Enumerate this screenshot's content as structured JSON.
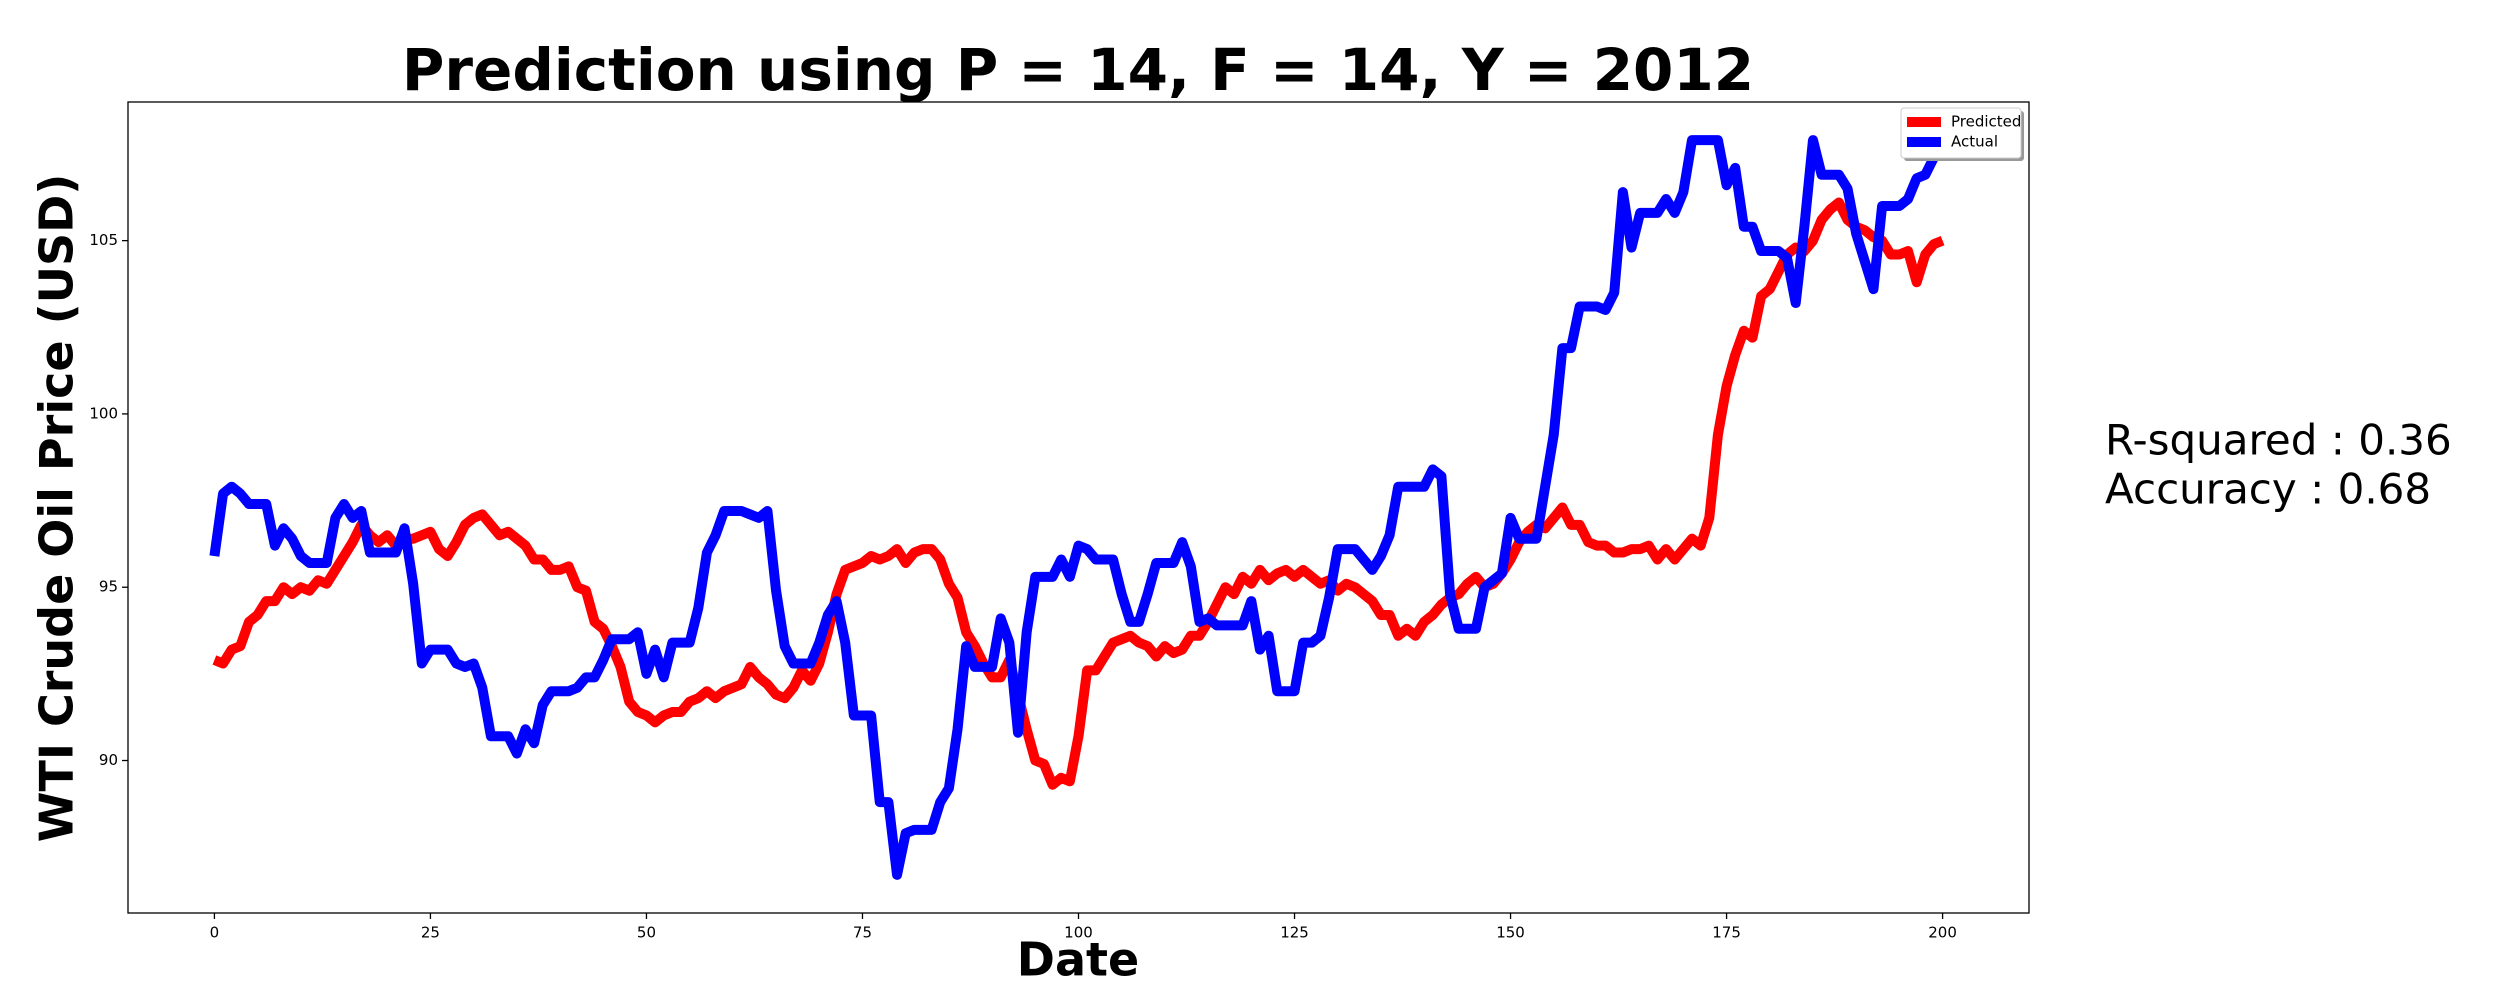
{
  "chart_data": {
    "type": "line",
    "title": "Prediction using P = 14, F = 14, Y = 2012",
    "x_label": "Date",
    "y_label": "WTI Crude Oil Price (USD)",
    "annotations": [
      "R-squared : 0.36",
      "Accuracy : 0.68"
    ],
    "legend": "upper right",
    "grid": false,
    "xlim": [
      -10,
      210
    ],
    "ylim": [
      85.6,
      109.0
    ],
    "xticks": [
      0,
      25,
      50,
      75,
      100,
      125,
      150,
      175,
      200
    ],
    "yticks": [
      90,
      95,
      100,
      105
    ],
    "x": [
      0,
      1,
      2,
      3,
      4,
      5,
      6,
      7,
      8,
      9,
      10,
      11,
      12,
      13,
      14,
      15,
      16,
      17,
      18,
      19,
      20,
      21,
      22,
      23,
      24,
      25,
      26,
      27,
      28,
      29,
      30,
      31,
      32,
      33,
      34,
      35,
      36,
      37,
      38,
      39,
      40,
      41,
      42,
      43,
      44,
      45,
      46,
      47,
      48,
      49,
      50,
      51,
      52,
      53,
      54,
      55,
      56,
      57,
      58,
      59,
      60,
      61,
      62,
      63,
      64,
      65,
      66,
      67,
      68,
      69,
      70,
      71,
      72,
      73,
      74,
      75,
      76,
      77,
      78,
      79,
      80,
      81,
      82,
      83,
      84,
      85,
      86,
      87,
      88,
      89,
      90,
      91,
      92,
      93,
      94,
      95,
      96,
      97,
      98,
      99,
      100,
      101,
      102,
      103,
      104,
      105,
      106,
      107,
      108,
      109,
      110,
      111,
      112,
      113,
      114,
      115,
      116,
      117,
      118,
      119,
      120,
      121,
      122,
      123,
      124,
      125,
      126,
      127,
      128,
      129,
      130,
      131,
      132,
      133,
      134,
      135,
      136,
      137,
      138,
      139,
      140,
      141,
      142,
      143,
      144,
      145,
      146,
      147,
      148,
      149,
      150,
      151,
      152,
      153,
      154,
      155,
      156,
      157,
      158,
      159,
      160,
      161,
      162,
      163,
      164,
      165,
      166,
      167,
      168,
      169,
      170,
      171,
      172,
      173,
      174,
      175,
      176,
      177,
      178,
      179,
      180,
      181,
      182,
      183,
      184,
      185,
      186,
      187,
      188,
      189,
      190,
      191,
      192,
      193,
      194,
      195,
      196,
      197,
      198,
      199,
      200
    ],
    "series": [
      {
        "name": "Predicted",
        "color": "#ff0000",
        "values": [
          92.9,
          92.8,
          93.2,
          93.3,
          94.0,
          94.2,
          94.6,
          94.6,
          95.0,
          94.8,
          95.0,
          94.9,
          95.2,
          95.1,
          95.5,
          95.9,
          96.3,
          96.8,
          96.5,
          96.3,
          96.5,
          96.2,
          96.4,
          96.4,
          96.5,
          96.6,
          96.1,
          95.9,
          96.3,
          96.8,
          97.0,
          97.1,
          96.8,
          96.5,
          96.6,
          96.4,
          96.2,
          95.8,
          95.8,
          95.5,
          95.5,
          95.6,
          95.0,
          94.9,
          94.0,
          93.8,
          93.3,
          92.7,
          91.7,
          91.4,
          91.3,
          91.1,
          91.3,
          91.4,
          91.4,
          91.7,
          91.8,
          92.0,
          91.8,
          92.0,
          92.1,
          92.2,
          92.7,
          92.4,
          92.2,
          91.9,
          91.8,
          92.1,
          92.6,
          92.3,
          92.8,
          93.7,
          94.8,
          95.5,
          95.6,
          95.7,
          95.9,
          95.8,
          95.9,
          96.1,
          95.7,
          96.0,
          96.1,
          96.1,
          95.8,
          95.1,
          94.7,
          93.7,
          93.3,
          92.8,
          92.4,
          92.4,
          92.9,
          91.9,
          90.9,
          90.0,
          89.9,
          89.3,
          89.5,
          89.4,
          90.7,
          92.6,
          92.6,
          93.0,
          93.4,
          93.5,
          93.6,
          93.4,
          93.3,
          93.0,
          93.3,
          93.1,
          93.2,
          93.6,
          93.6,
          94.0,
          94.5,
          95.0,
          94.8,
          95.3,
          95.1,
          95.5,
          95.2,
          95.4,
          95.5,
          95.3,
          95.5,
          95.3,
          95.1,
          95.2,
          94.9,
          95.1,
          95.0,
          94.8,
          94.6,
          94.2,
          94.2,
          93.6,
          93.8,
          93.6,
          94.0,
          94.2,
          94.5,
          94.7,
          94.8,
          95.1,
          95.3,
          95.0,
          95.1,
          95.4,
          95.8,
          96.3,
          96.6,
          96.8,
          96.7,
          97.0,
          97.3,
          96.8,
          96.8,
          96.3,
          96.2,
          96.2,
          96.0,
          96.0,
          96.1,
          96.1,
          96.2,
          95.8,
          96.1,
          95.8,
          96.1,
          96.4,
          96.2,
          97.0,
          99.4,
          100.8,
          101.7,
          102.4,
          102.2,
          103.4,
          103.6,
          104.1,
          104.6,
          104.8,
          104.7,
          105.0,
          105.6,
          105.9,
          106.1,
          105.6,
          105.4,
          105.3,
          105.1,
          105.0,
          104.6,
          104.6,
          104.7,
          103.8,
          104.6,
          104.9,
          105.0
        ]
      },
      {
        "name": "Actual",
        "color": "#0000ff",
        "values": [
          95.9,
          97.7,
          97.9,
          97.7,
          97.4,
          97.4,
          97.4,
          96.2,
          96.7,
          96.4,
          95.9,
          95.7,
          95.7,
          95.7,
          97.0,
          97.4,
          97.0,
          97.2,
          96.0,
          96.0,
          96.0,
          96.0,
          96.7,
          95.1,
          92.8,
          93.2,
          93.2,
          93.2,
          92.8,
          92.7,
          92.8,
          92.1,
          90.7,
          90.7,
          90.7,
          90.2,
          90.9,
          90.5,
          91.6,
          92.0,
          92.0,
          92.0,
          92.1,
          92.4,
          92.4,
          92.9,
          93.5,
          93.5,
          93.5,
          93.7,
          92.5,
          93.2,
          92.4,
          93.4,
          93.4,
          93.4,
          94.4,
          96.0,
          96.5,
          97.2,
          97.2,
          97.2,
          97.1,
          97.0,
          97.2,
          94.9,
          93.3,
          92.8,
          92.8,
          92.8,
          93.4,
          94.2,
          94.6,
          93.4,
          91.3,
          91.3,
          91.3,
          88.8,
          88.8,
          86.7,
          87.9,
          88.0,
          88.0,
          88.0,
          88.8,
          89.2,
          90.9,
          93.3,
          92.7,
          92.7,
          92.7,
          94.1,
          93.4,
          90.8,
          93.7,
          95.3,
          95.3,
          95.3,
          95.8,
          95.3,
          96.2,
          96.1,
          95.8,
          95.8,
          95.8,
          94.8,
          94.0,
          94.0,
          94.8,
          95.7,
          95.7,
          95.7,
          96.3,
          95.6,
          94.0,
          94.1,
          93.9,
          93.9,
          93.9,
          93.9,
          94.6,
          93.2,
          93.6,
          92.0,
          92.0,
          92.0,
          93.4,
          93.4,
          93.6,
          94.7,
          96.1,
          96.1,
          96.1,
          95.8,
          95.5,
          95.9,
          96.5,
          97.9,
          97.9,
          97.9,
          97.9,
          98.4,
          98.2,
          94.8,
          93.8,
          93.8,
          93.8,
          95.0,
          95.2,
          95.4,
          97.0,
          96.4,
          96.4,
          96.4,
          97.9,
          99.4,
          101.9,
          101.9,
          103.1,
          103.1,
          103.1,
          103.0,
          103.5,
          106.4,
          104.8,
          105.8,
          105.8,
          105.8,
          106.2,
          105.8,
          106.4,
          107.9,
          107.9,
          107.9,
          107.9,
          106.6,
          107.1,
          105.4,
          105.4,
          104.7,
          104.7,
          104.7,
          104.5,
          103.2,
          105.4,
          107.9,
          106.9,
          106.9,
          106.9,
          106.5,
          105.2,
          104.4,
          103.6,
          106.0,
          106.0,
          106.0,
          106.2,
          106.8,
          106.9,
          107.4,
          107.9
        ]
      }
    ]
  }
}
